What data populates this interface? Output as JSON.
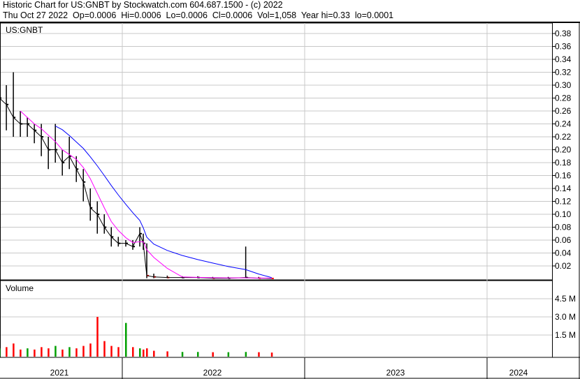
{
  "header": {
    "title": "Historic Chart for US:GNBT by Stockwatch.com 604.687.1500 - (c) 2022",
    "quote": "Thu Oct 27 2022  Op=0.0006  Hi=0.0006  Lo=0.0006  Cl=0.0006  Vol=1,058  Year hi=0.33  lo=0.0001"
  },
  "chart_data": {
    "type": "line",
    "symbol": "US:GNBT",
    "volume_label": "Volume",
    "price_ticks": [
      "0.02",
      "0.04",
      "0.06",
      "0.08",
      "0.10",
      "0.12",
      "0.14",
      "0.16",
      "0.18",
      "0.20",
      "0.22",
      "0.24",
      "0.26",
      "0.28",
      "0.30",
      "0.32",
      "0.34",
      "0.36",
      "0.38"
    ],
    "volume_ticks": [
      "1.5 M",
      "3.0 M",
      "4.5 M"
    ],
    "year_labels": [
      "2021",
      "2022",
      "2023",
      "2024"
    ],
    "ylim": [
      0,
      0.39
    ],
    "xlim": [
      "2021-04-30",
      "2024-06-30"
    ],
    "grid": true,
    "colors": {
      "price": "#000000",
      "down": "#ff0000",
      "ma_short": "#ff00ff",
      "ma_long": "#0000ff",
      "vol_up": "#00a000",
      "vol_down": "#ff0000"
    },
    "dates": [
      "2021-04-30",
      "2021-05-14",
      "2021-05-28",
      "2021-06-11",
      "2021-06-25",
      "2021-07-09",
      "2021-07-23",
      "2021-08-06",
      "2021-08-20",
      "2021-09-03",
      "2021-09-17",
      "2021-10-01",
      "2021-10-15",
      "2021-10-29",
      "2021-11-12",
      "2021-11-26",
      "2021-12-10",
      "2021-12-24",
      "2022-01-08",
      "2022-01-22",
      "2022-02-05",
      "2022-02-12",
      "2022-02-19",
      "2022-03-05",
      "2022-04-01",
      "2022-05-01",
      "2022-06-01",
      "2022-07-01",
      "2022-08-01",
      "2022-09-05",
      "2022-10-01",
      "2022-10-27"
    ],
    "close": [
      0.28,
      0.27,
      0.25,
      0.24,
      0.24,
      0.23,
      0.22,
      0.2,
      0.2,
      0.18,
      0.19,
      0.17,
      0.15,
      0.11,
      0.1,
      0.08,
      0.065,
      0.055,
      0.055,
      0.05,
      0.07,
      0.055,
      0.005,
      0.003,
      0.002,
      0.002,
      0.002,
      0.001,
      0.001,
      0.002,
      0.001,
      0.0006
    ],
    "high": [
      0.33,
      0.3,
      0.32,
      0.26,
      0.25,
      0.24,
      0.24,
      0.22,
      0.24,
      0.2,
      0.22,
      0.19,
      0.17,
      0.14,
      0.12,
      0.1,
      0.08,
      0.065,
      0.06,
      0.06,
      0.08,
      0.07,
      0.055,
      0.008,
      0.005,
      0.004,
      0.004,
      0.003,
      0.003,
      0.05,
      0.003,
      0.0006
    ],
    "low": [
      0.22,
      0.23,
      0.22,
      0.22,
      0.22,
      0.21,
      0.19,
      0.17,
      0.18,
      0.16,
      0.17,
      0.15,
      0.12,
      0.09,
      0.07,
      0.07,
      0.05,
      0.05,
      0.05,
      0.045,
      0.05,
      0.045,
      0.001,
      0.001,
      0.001,
      0.001,
      0.001,
      0.0005,
      0.0005,
      0.001,
      0.0005,
      0.0006
    ],
    "volume_millions": [
      0.4,
      0.5,
      0.8,
      0.3,
      0.4,
      0.3,
      0.5,
      0.4,
      0.6,
      0.3,
      0.5,
      0.4,
      0.6,
      0.8,
      3.0,
      1.0,
      0.6,
      0.5,
      2.5,
      0.5,
      0.4,
      0.3,
      0.4,
      0.2,
      0.15,
      0.1,
      0.1,
      0.08,
      0.08,
      0.1,
      0.08,
      0.05
    ]
  }
}
